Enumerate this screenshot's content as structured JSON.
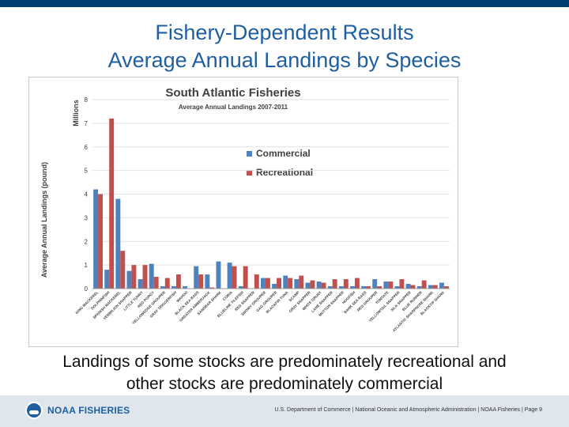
{
  "slide": {
    "title_line1": "Fishery-Dependent Results",
    "title_line2": "Average Annual Landings by Species",
    "caption_line1": "Landings of some stocks are predominately recreational and",
    "caption_line2": "other stocks are predominately commercial"
  },
  "footer": {
    "brand": "NOAA FISHERIES",
    "text": "U.S. Department of Commerce | National Oceanic and Atmospheric Administration | NOAA Fisheries | Page 9"
  },
  "colors": {
    "top_bar": "#003f72",
    "commercial": "#4f81bd",
    "recreational": "#c0504d"
  },
  "chart_data": {
    "type": "bar",
    "title": "South Atlantic Fisheries",
    "subtitle": "Average Annual Landings 2007-2011",
    "ylabel": "Average Annual Landings (pound)",
    "yunit": "Millions",
    "ylim": [
      0,
      8
    ],
    "yticks": [
      0,
      1,
      2,
      3,
      4,
      5,
      6,
      7,
      8
    ],
    "grid": true,
    "legend_position": "upper-middle",
    "categories": [
      "KING MACKEREL",
      "DOLPHINFISH",
      "SPANISH MACKEREL",
      "VERMILION SNAPPER",
      "LITTLE TUNNY",
      "RED PORGY",
      "YELLOWEDGE GROUPER",
      "GRAY TRIGGERFISH",
      "WAHOO",
      "BLACK SEA BASS",
      "GREATER AMBERJACK",
      "SANDBAR SHARK",
      "COBIA",
      "BLUELINE TILEFISH",
      "RED SNAPPER",
      "SNOWY GROUPER",
      "GAG GROUPER",
      "BLACKFIN TUNA",
      "SCAMP",
      "GRAY SNAPPER",
      "WHITE GRUNT",
      "LANE SNAPPER",
      "MUTTON SNAPPER",
      "HOGFISH",
      "BANK SEA BASS",
      "RED GROUPER",
      "TOMTATE",
      "YELLOWTAIL SNAPPER",
      "SILK SNAPPER",
      "BLUE RUNNER",
      "ATLANTIC SHARPNOSE SHARK",
      "BLACKTIP SHARK"
    ],
    "series": [
      {
        "name": "Commercial",
        "values": [
          4.2,
          0.8,
          3.8,
          0.75,
          0.4,
          1.05,
          0.1,
          0.1,
          0.1,
          0.95,
          0.6,
          1.15,
          1.1,
          0.1,
          0.0,
          0.45,
          0.2,
          0.55,
          0.4,
          0.25,
          0.3,
          0.1,
          0.1,
          0.1,
          0.1,
          0.4,
          0.3,
          0.1,
          0.2,
          0.1,
          0.15,
          0.25
        ]
      },
      {
        "name": "Recreational",
        "values": [
          4.0,
          7.2,
          1.6,
          1.0,
          1.0,
          0.5,
          0.45,
          0.6,
          0.0,
          0.6,
          0.05,
          0.0,
          0.95,
          0.95,
          0.6,
          0.45,
          0.45,
          0.45,
          0.55,
          0.35,
          0.25,
          0.4,
          0.4,
          0.45,
          0.1,
          0.1,
          0.3,
          0.4,
          0.15,
          0.35,
          0.15,
          0.1
        ]
      }
    ]
  }
}
